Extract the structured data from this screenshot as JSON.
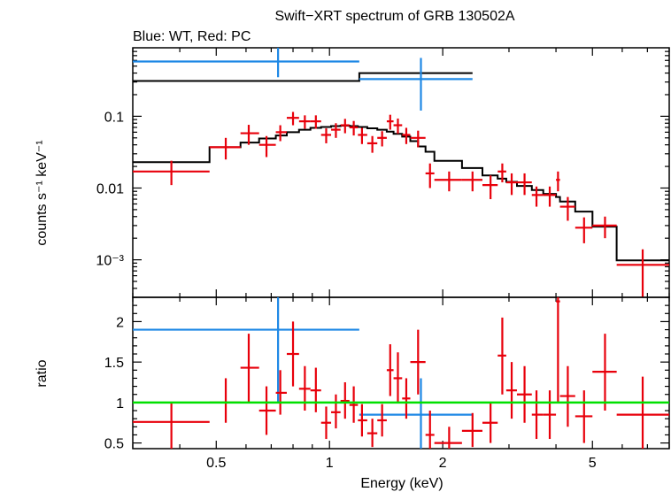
{
  "title": "Swift−XRT spectrum of GRB 130502A",
  "subtitle": "Blue: WT, Red: PC",
  "colors": {
    "wt": "#1e88e5",
    "pc": "#e8000b",
    "model": "#000000",
    "unity": "#00e000",
    "frame": "#000000"
  },
  "chart_data": [
    {
      "type": "scatter",
      "panel": "spectrum",
      "xlabel": "Energy (keV)",
      "ylabel": "counts s⁻¹ keV⁻¹",
      "xscale": "log",
      "yscale": "log",
      "xlim": [
        0.3,
        8
      ],
      "ylim": [
        0.0003,
        0.9
      ],
      "y_ticks": [
        {
          "value": 0.1,
          "label": "0.1"
        },
        {
          "value": 0.01,
          "label": "0.01"
        },
        {
          "value": 0.001,
          "label": "10⁻³"
        }
      ],
      "series": [
        {
          "name": "WT",
          "color": "#1e88e5",
          "points": [
            {
              "x": 0.73,
              "xlo": 0.3,
              "xhi": 1.2,
              "y": 0.58,
              "ylo": 0.35,
              "yhi": 0.9
            },
            {
              "x": 1.75,
              "xlo": 1.2,
              "xhi": 2.4,
              "y": 0.33,
              "ylo": 0.12,
              "yhi": 0.65
            }
          ]
        },
        {
          "name": "PC",
          "color": "#e8000b",
          "points": [
            {
              "x": 0.38,
              "xlo": 0.3,
              "xhi": 0.48,
              "y": 0.017,
              "ylo": 0.011,
              "yhi": 0.024
            },
            {
              "x": 0.53,
              "xlo": 0.48,
              "xhi": 0.58,
              "y": 0.037,
              "ylo": 0.025,
              "yhi": 0.05
            },
            {
              "x": 0.61,
              "xlo": 0.58,
              "xhi": 0.65,
              "y": 0.058,
              "ylo": 0.04,
              "yhi": 0.076
            },
            {
              "x": 0.68,
              "xlo": 0.65,
              "xhi": 0.72,
              "y": 0.04,
              "ylo": 0.027,
              "yhi": 0.053
            },
            {
              "x": 0.74,
              "xlo": 0.72,
              "xhi": 0.77,
              "y": 0.06,
              "ylo": 0.045,
              "yhi": 0.075
            },
            {
              "x": 0.8,
              "xlo": 0.77,
              "xhi": 0.83,
              "y": 0.095,
              "ylo": 0.075,
              "yhi": 0.115
            },
            {
              "x": 0.86,
              "xlo": 0.83,
              "xhi": 0.89,
              "y": 0.085,
              "ylo": 0.067,
              "yhi": 0.103
            },
            {
              "x": 0.92,
              "xlo": 0.89,
              "xhi": 0.95,
              "y": 0.085,
              "ylo": 0.067,
              "yhi": 0.103
            },
            {
              "x": 0.98,
              "xlo": 0.95,
              "xhi": 1.01,
              "y": 0.055,
              "ylo": 0.042,
              "yhi": 0.068
            },
            {
              "x": 1.04,
              "xlo": 1.01,
              "xhi": 1.07,
              "y": 0.065,
              "ylo": 0.05,
              "yhi": 0.08
            },
            {
              "x": 1.1,
              "xlo": 1.07,
              "xhi": 1.13,
              "y": 0.075,
              "ylo": 0.058,
              "yhi": 0.092
            },
            {
              "x": 1.16,
              "xlo": 1.13,
              "xhi": 1.19,
              "y": 0.07,
              "ylo": 0.054,
              "yhi": 0.086
            },
            {
              "x": 1.22,
              "xlo": 1.19,
              "xhi": 1.26,
              "y": 0.055,
              "ylo": 0.041,
              "yhi": 0.069
            },
            {
              "x": 1.3,
              "xlo": 1.26,
              "xhi": 1.34,
              "y": 0.042,
              "ylo": 0.031,
              "yhi": 0.053
            },
            {
              "x": 1.38,
              "xlo": 1.34,
              "xhi": 1.42,
              "y": 0.05,
              "ylo": 0.038,
              "yhi": 0.062
            },
            {
              "x": 1.45,
              "xlo": 1.42,
              "xhi": 1.48,
              "y": 0.085,
              "ylo": 0.065,
              "yhi": 0.105
            },
            {
              "x": 1.52,
              "xlo": 1.48,
              "xhi": 1.56,
              "y": 0.075,
              "ylo": 0.057,
              "yhi": 0.093
            },
            {
              "x": 1.6,
              "xlo": 1.56,
              "xhi": 1.64,
              "y": 0.055,
              "ylo": 0.041,
              "yhi": 0.069
            },
            {
              "x": 1.72,
              "xlo": 1.64,
              "xhi": 1.8,
              "y": 0.05,
              "ylo": 0.037,
              "yhi": 0.063
            },
            {
              "x": 1.85,
              "xlo": 1.8,
              "xhi": 1.9,
              "y": 0.016,
              "ylo": 0.01,
              "yhi": 0.022
            },
            {
              "x": 2.08,
              "xlo": 1.9,
              "xhi": 2.25,
              "y": 0.013,
              "ylo": 0.009,
              "yhi": 0.017
            },
            {
              "x": 2.4,
              "xlo": 2.25,
              "xhi": 2.55,
              "y": 0.013,
              "ylo": 0.009,
              "yhi": 0.017
            },
            {
              "x": 2.68,
              "xlo": 2.55,
              "xhi": 2.8,
              "y": 0.011,
              "ylo": 0.007,
              "yhi": 0.015
            },
            {
              "x": 2.88,
              "xlo": 2.8,
              "xhi": 2.95,
              "y": 0.017,
              "ylo": 0.012,
              "yhi": 0.022
            },
            {
              "x": 3.05,
              "xlo": 2.95,
              "xhi": 3.15,
              "y": 0.012,
              "ylo": 0.008,
              "yhi": 0.016
            },
            {
              "x": 3.3,
              "xlo": 3.15,
              "xhi": 3.45,
              "y": 0.012,
              "ylo": 0.008,
              "yhi": 0.016
            },
            {
              "x": 3.55,
              "xlo": 3.45,
              "xhi": 3.7,
              "y": 0.008,
              "ylo": 0.0055,
              "yhi": 0.0105
            },
            {
              "x": 3.85,
              "xlo": 3.7,
              "xhi": 4.0,
              "y": 0.008,
              "ylo": 0.0055,
              "yhi": 0.0105
            },
            {
              "x": 4.05,
              "xlo": 4.0,
              "xhi": 4.1,
              "y": 0.013,
              "ylo": 0.009,
              "yhi": 0.017
            },
            {
              "x": 4.3,
              "xlo": 4.1,
              "xhi": 4.5,
              "y": 0.0055,
              "ylo": 0.0035,
              "yhi": 0.0075
            },
            {
              "x": 4.75,
              "xlo": 4.5,
              "xhi": 5.0,
              "y": 0.0028,
              "ylo": 0.0017,
              "yhi": 0.0039
            },
            {
              "x": 5.4,
              "xlo": 5.0,
              "xhi": 5.8,
              "y": 0.003,
              "ylo": 0.002,
              "yhi": 0.004
            },
            {
              "x": 6.8,
              "xlo": 5.8,
              "xhi": 8.0,
              "y": 0.00085,
              "ylo": 0.0003,
              "yhi": 0.0014
            }
          ]
        },
        {
          "name": "WT model",
          "color": "#000000",
          "steps": [
            {
              "xlo": 0.3,
              "xhi": 1.2,
              "y": 0.31
            },
            {
              "xlo": 1.2,
              "xhi": 2.4,
              "y": 0.4
            }
          ]
        },
        {
          "name": "PC model",
          "color": "#000000",
          "steps": [
            {
              "xlo": 0.3,
              "xhi": 0.48,
              "y": 0.023
            },
            {
              "xlo": 0.48,
              "xhi": 0.58,
              "y": 0.037
            },
            {
              "xlo": 0.58,
              "xhi": 0.65,
              "y": 0.043
            },
            {
              "xlo": 0.65,
              "xhi": 0.72,
              "y": 0.049
            },
            {
              "xlo": 0.72,
              "xhi": 0.77,
              "y": 0.054
            },
            {
              "xlo": 0.77,
              "xhi": 0.83,
              "y": 0.06
            },
            {
              "xlo": 0.83,
              "xhi": 0.89,
              "y": 0.065
            },
            {
              "xlo": 0.89,
              "xhi": 0.95,
              "y": 0.069
            },
            {
              "xlo": 0.95,
              "xhi": 1.01,
              "y": 0.071
            },
            {
              "xlo": 1.01,
              "xhi": 1.07,
              "y": 0.073
            },
            {
              "xlo": 1.07,
              "xhi": 1.13,
              "y": 0.074
            },
            {
              "xlo": 1.13,
              "xhi": 1.19,
              "y": 0.073
            },
            {
              "xlo": 1.19,
              "xhi": 1.26,
              "y": 0.071
            },
            {
              "xlo": 1.26,
              "xhi": 1.34,
              "y": 0.068
            },
            {
              "xlo": 1.34,
              "xhi": 1.42,
              "y": 0.065
            },
            {
              "xlo": 1.42,
              "xhi": 1.48,
              "y": 0.061
            },
            {
              "xlo": 1.48,
              "xhi": 1.56,
              "y": 0.057
            },
            {
              "xlo": 1.56,
              "xhi": 1.64,
              "y": 0.052
            },
            {
              "xlo": 1.64,
              "xhi": 1.72,
              "y": 0.045
            },
            {
              "xlo": 1.72,
              "xhi": 1.8,
              "y": 0.038
            },
            {
              "xlo": 1.8,
              "xhi": 1.9,
              "y": 0.032
            },
            {
              "xlo": 1.9,
              "xhi": 2.25,
              "y": 0.024
            },
            {
              "xlo": 2.25,
              "xhi": 2.55,
              "y": 0.019
            },
            {
              "xlo": 2.55,
              "xhi": 2.8,
              "y": 0.015
            },
            {
              "xlo": 2.8,
              "xhi": 2.95,
              "y": 0.0135
            },
            {
              "xlo": 2.95,
              "xhi": 3.15,
              "y": 0.0122
            },
            {
              "xlo": 3.15,
              "xhi": 3.45,
              "y": 0.0107
            },
            {
              "xlo": 3.45,
              "xhi": 3.7,
              "y": 0.0094
            },
            {
              "xlo": 3.7,
              "xhi": 4.0,
              "y": 0.0083
            },
            {
              "xlo": 4.0,
              "xhi": 4.1,
              "y": 0.0075
            },
            {
              "xlo": 4.1,
              "xhi": 4.5,
              "y": 0.0065
            },
            {
              "xlo": 4.5,
              "xhi": 5.0,
              "y": 0.0047
            },
            {
              "xlo": 5.0,
              "xhi": 5.8,
              "y": 0.0029
            },
            {
              "xlo": 5.8,
              "xhi": 8.0,
              "y": 0.00098
            }
          ]
        }
      ]
    },
    {
      "type": "scatter",
      "panel": "ratio",
      "xlabel": "Energy (keV)",
      "ylabel": "ratio",
      "xscale": "log",
      "xlim": [
        0.3,
        8
      ],
      "ylim": [
        0.43,
        2.3
      ],
      "x_ticks": [
        {
          "value": 0.5,
          "label": "0.5"
        },
        {
          "value": 1,
          "label": "1"
        },
        {
          "value": 2,
          "label": "2"
        },
        {
          "value": 5,
          "label": "5"
        }
      ],
      "y_ticks": [
        {
          "value": 0.5,
          "label": "0.5"
        },
        {
          "value": 1,
          "label": "1"
        },
        {
          "value": 1.5,
          "label": "1.5"
        },
        {
          "value": 2,
          "label": "2"
        }
      ],
      "reference_line": 1,
      "series": [
        {
          "name": "WT",
          "color": "#1e88e5",
          "points": [
            {
              "x": 0.73,
              "xlo": 0.3,
              "xhi": 1.2,
              "y": 1.9,
              "ylo": 1.0,
              "yhi": 2.3
            },
            {
              "x": 1.75,
              "xlo": 1.2,
              "xhi": 2.4,
              "y": 0.85,
              "ylo": 0.43,
              "yhi": 1.3
            }
          ]
        },
        {
          "name": "PC",
          "color": "#e8000b",
          "points": [
            {
              "x": 0.38,
              "xlo": 0.3,
              "xhi": 0.48,
              "y": 0.76,
              "ylo": 0.43,
              "yhi": 1.0
            },
            {
              "x": 0.53,
              "xlo": 0.48,
              "xhi": 0.58,
              "y": 1.0,
              "ylo": 0.75,
              "yhi": 1.3
            },
            {
              "x": 0.61,
              "xlo": 0.58,
              "xhi": 0.65,
              "y": 1.43,
              "ylo": 1.0,
              "yhi": 1.85
            },
            {
              "x": 0.68,
              "xlo": 0.65,
              "xhi": 0.72,
              "y": 0.9,
              "ylo": 0.6,
              "yhi": 1.2
            },
            {
              "x": 0.74,
              "xlo": 0.72,
              "xhi": 0.77,
              "y": 1.12,
              "ylo": 0.85,
              "yhi": 1.4
            },
            {
              "x": 0.8,
              "xlo": 0.77,
              "xhi": 0.83,
              "y": 1.6,
              "ylo": 1.2,
              "yhi": 2.0
            },
            {
              "x": 0.86,
              "xlo": 0.83,
              "xhi": 0.89,
              "y": 1.17,
              "ylo": 0.9,
              "yhi": 1.45
            },
            {
              "x": 0.92,
              "xlo": 0.89,
              "xhi": 0.95,
              "y": 1.15,
              "ylo": 0.88,
              "yhi": 1.43
            },
            {
              "x": 0.98,
              "xlo": 0.95,
              "xhi": 1.01,
              "y": 0.75,
              "ylo": 0.55,
              "yhi": 0.95
            },
            {
              "x": 1.04,
              "xlo": 1.01,
              "xhi": 1.07,
              "y": 0.88,
              "ylo": 0.68,
              "yhi": 1.1
            },
            {
              "x": 1.1,
              "xlo": 1.07,
              "xhi": 1.13,
              "y": 1.02,
              "ylo": 0.8,
              "yhi": 1.25
            },
            {
              "x": 1.16,
              "xlo": 1.13,
              "xhi": 1.19,
              "y": 0.97,
              "ylo": 0.75,
              "yhi": 1.2
            },
            {
              "x": 1.22,
              "xlo": 1.19,
              "xhi": 1.26,
              "y": 0.78,
              "ylo": 0.58,
              "yhi": 0.98
            },
            {
              "x": 1.3,
              "xlo": 1.26,
              "xhi": 1.34,
              "y": 0.62,
              "ylo": 0.45,
              "yhi": 0.8
            },
            {
              "x": 1.38,
              "xlo": 1.34,
              "xhi": 1.42,
              "y": 0.78,
              "ylo": 0.58,
              "yhi": 0.98
            },
            {
              "x": 1.45,
              "xlo": 1.42,
              "xhi": 1.48,
              "y": 1.4,
              "ylo": 1.08,
              "yhi": 1.72
            },
            {
              "x": 1.52,
              "xlo": 1.48,
              "xhi": 1.56,
              "y": 1.3,
              "ylo": 1.0,
              "yhi": 1.62
            },
            {
              "x": 1.6,
              "xlo": 1.56,
              "xhi": 1.64,
              "y": 1.05,
              "ylo": 0.8,
              "yhi": 1.3
            },
            {
              "x": 1.72,
              "xlo": 1.64,
              "xhi": 1.8,
              "y": 1.5,
              "ylo": 1.1,
              "yhi": 1.9
            },
            {
              "x": 1.85,
              "xlo": 1.8,
              "xhi": 1.9,
              "y": 0.6,
              "ylo": 0.43,
              "yhi": 0.9
            },
            {
              "x": 2.08,
              "xlo": 1.9,
              "xhi": 2.25,
              "y": 0.5,
              "ylo": 0.43,
              "yhi": 0.7
            },
            {
              "x": 2.4,
              "xlo": 2.25,
              "xhi": 2.55,
              "y": 0.65,
              "ylo": 0.45,
              "yhi": 0.87
            },
            {
              "x": 2.68,
              "xlo": 2.55,
              "xhi": 2.8,
              "y": 0.75,
              "ylo": 0.5,
              "yhi": 1.0
            },
            {
              "x": 2.88,
              "xlo": 2.8,
              "xhi": 2.95,
              "y": 1.58,
              "ylo": 1.1,
              "yhi": 2.05
            },
            {
              "x": 3.05,
              "xlo": 2.95,
              "xhi": 3.15,
              "y": 1.15,
              "ylo": 0.8,
              "yhi": 1.5
            },
            {
              "x": 3.3,
              "xlo": 3.15,
              "xhi": 3.45,
              "y": 1.1,
              "ylo": 0.75,
              "yhi": 1.45
            },
            {
              "x": 3.55,
              "xlo": 3.45,
              "xhi": 3.7,
              "y": 0.85,
              "ylo": 0.55,
              "yhi": 1.15
            },
            {
              "x": 3.85,
              "xlo": 3.7,
              "xhi": 4.0,
              "y": 0.85,
              "ylo": 0.55,
              "yhi": 1.15
            },
            {
              "x": 4.05,
              "xlo": 4.0,
              "xhi": 4.1,
              "y": 2.25,
              "ylo": 1.0,
              "yhi": 2.3
            },
            {
              "x": 4.3,
              "xlo": 4.1,
              "xhi": 4.5,
              "y": 1.08,
              "ylo": 0.7,
              "yhi": 1.45
            },
            {
              "x": 4.75,
              "xlo": 4.5,
              "xhi": 5.0,
              "y": 0.83,
              "ylo": 0.5,
              "yhi": 1.15
            },
            {
              "x": 5.4,
              "xlo": 5.0,
              "xhi": 5.8,
              "y": 1.38,
              "ylo": 0.9,
              "yhi": 1.85
            },
            {
              "x": 6.8,
              "xlo": 5.8,
              "xhi": 8.0,
              "y": 0.85,
              "ylo": 0.43,
              "yhi": 1.32
            }
          ]
        }
      ]
    }
  ]
}
